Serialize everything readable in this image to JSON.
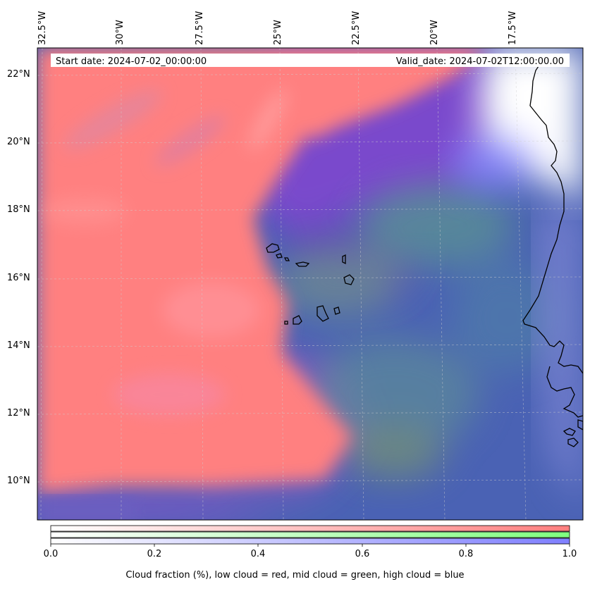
{
  "map": {
    "header": {
      "start_date": "Start date: 2024-07-02_00:00:00",
      "valid_date": "Valid_date: 2024-07-02T12:00:00.00"
    },
    "lon_labels": [
      "32.5°W",
      "30°W",
      "27.5°W",
      "25°W",
      "22.5°W",
      "20°W",
      "17.5°W"
    ],
    "lat_labels": [
      "22°N",
      "20°N",
      "18°N",
      "16°N",
      "14°N",
      "12°N",
      "10°N"
    ],
    "layers": [
      "low cloud",
      "mid cloud",
      "high cloud"
    ],
    "colors": {
      "low_cloud": "#ff8080",
      "mid_cloud": "#80ff80",
      "high_cloud": "#8080ff",
      "coastline": "#000000"
    }
  },
  "colorbar": {
    "ticks": [
      "0.0",
      "0.2",
      "0.4",
      "0.6",
      "0.8",
      "1.0"
    ],
    "title": "Cloud fraction (%), low cloud = red, mid cloud = green, high cloud = blue"
  }
}
